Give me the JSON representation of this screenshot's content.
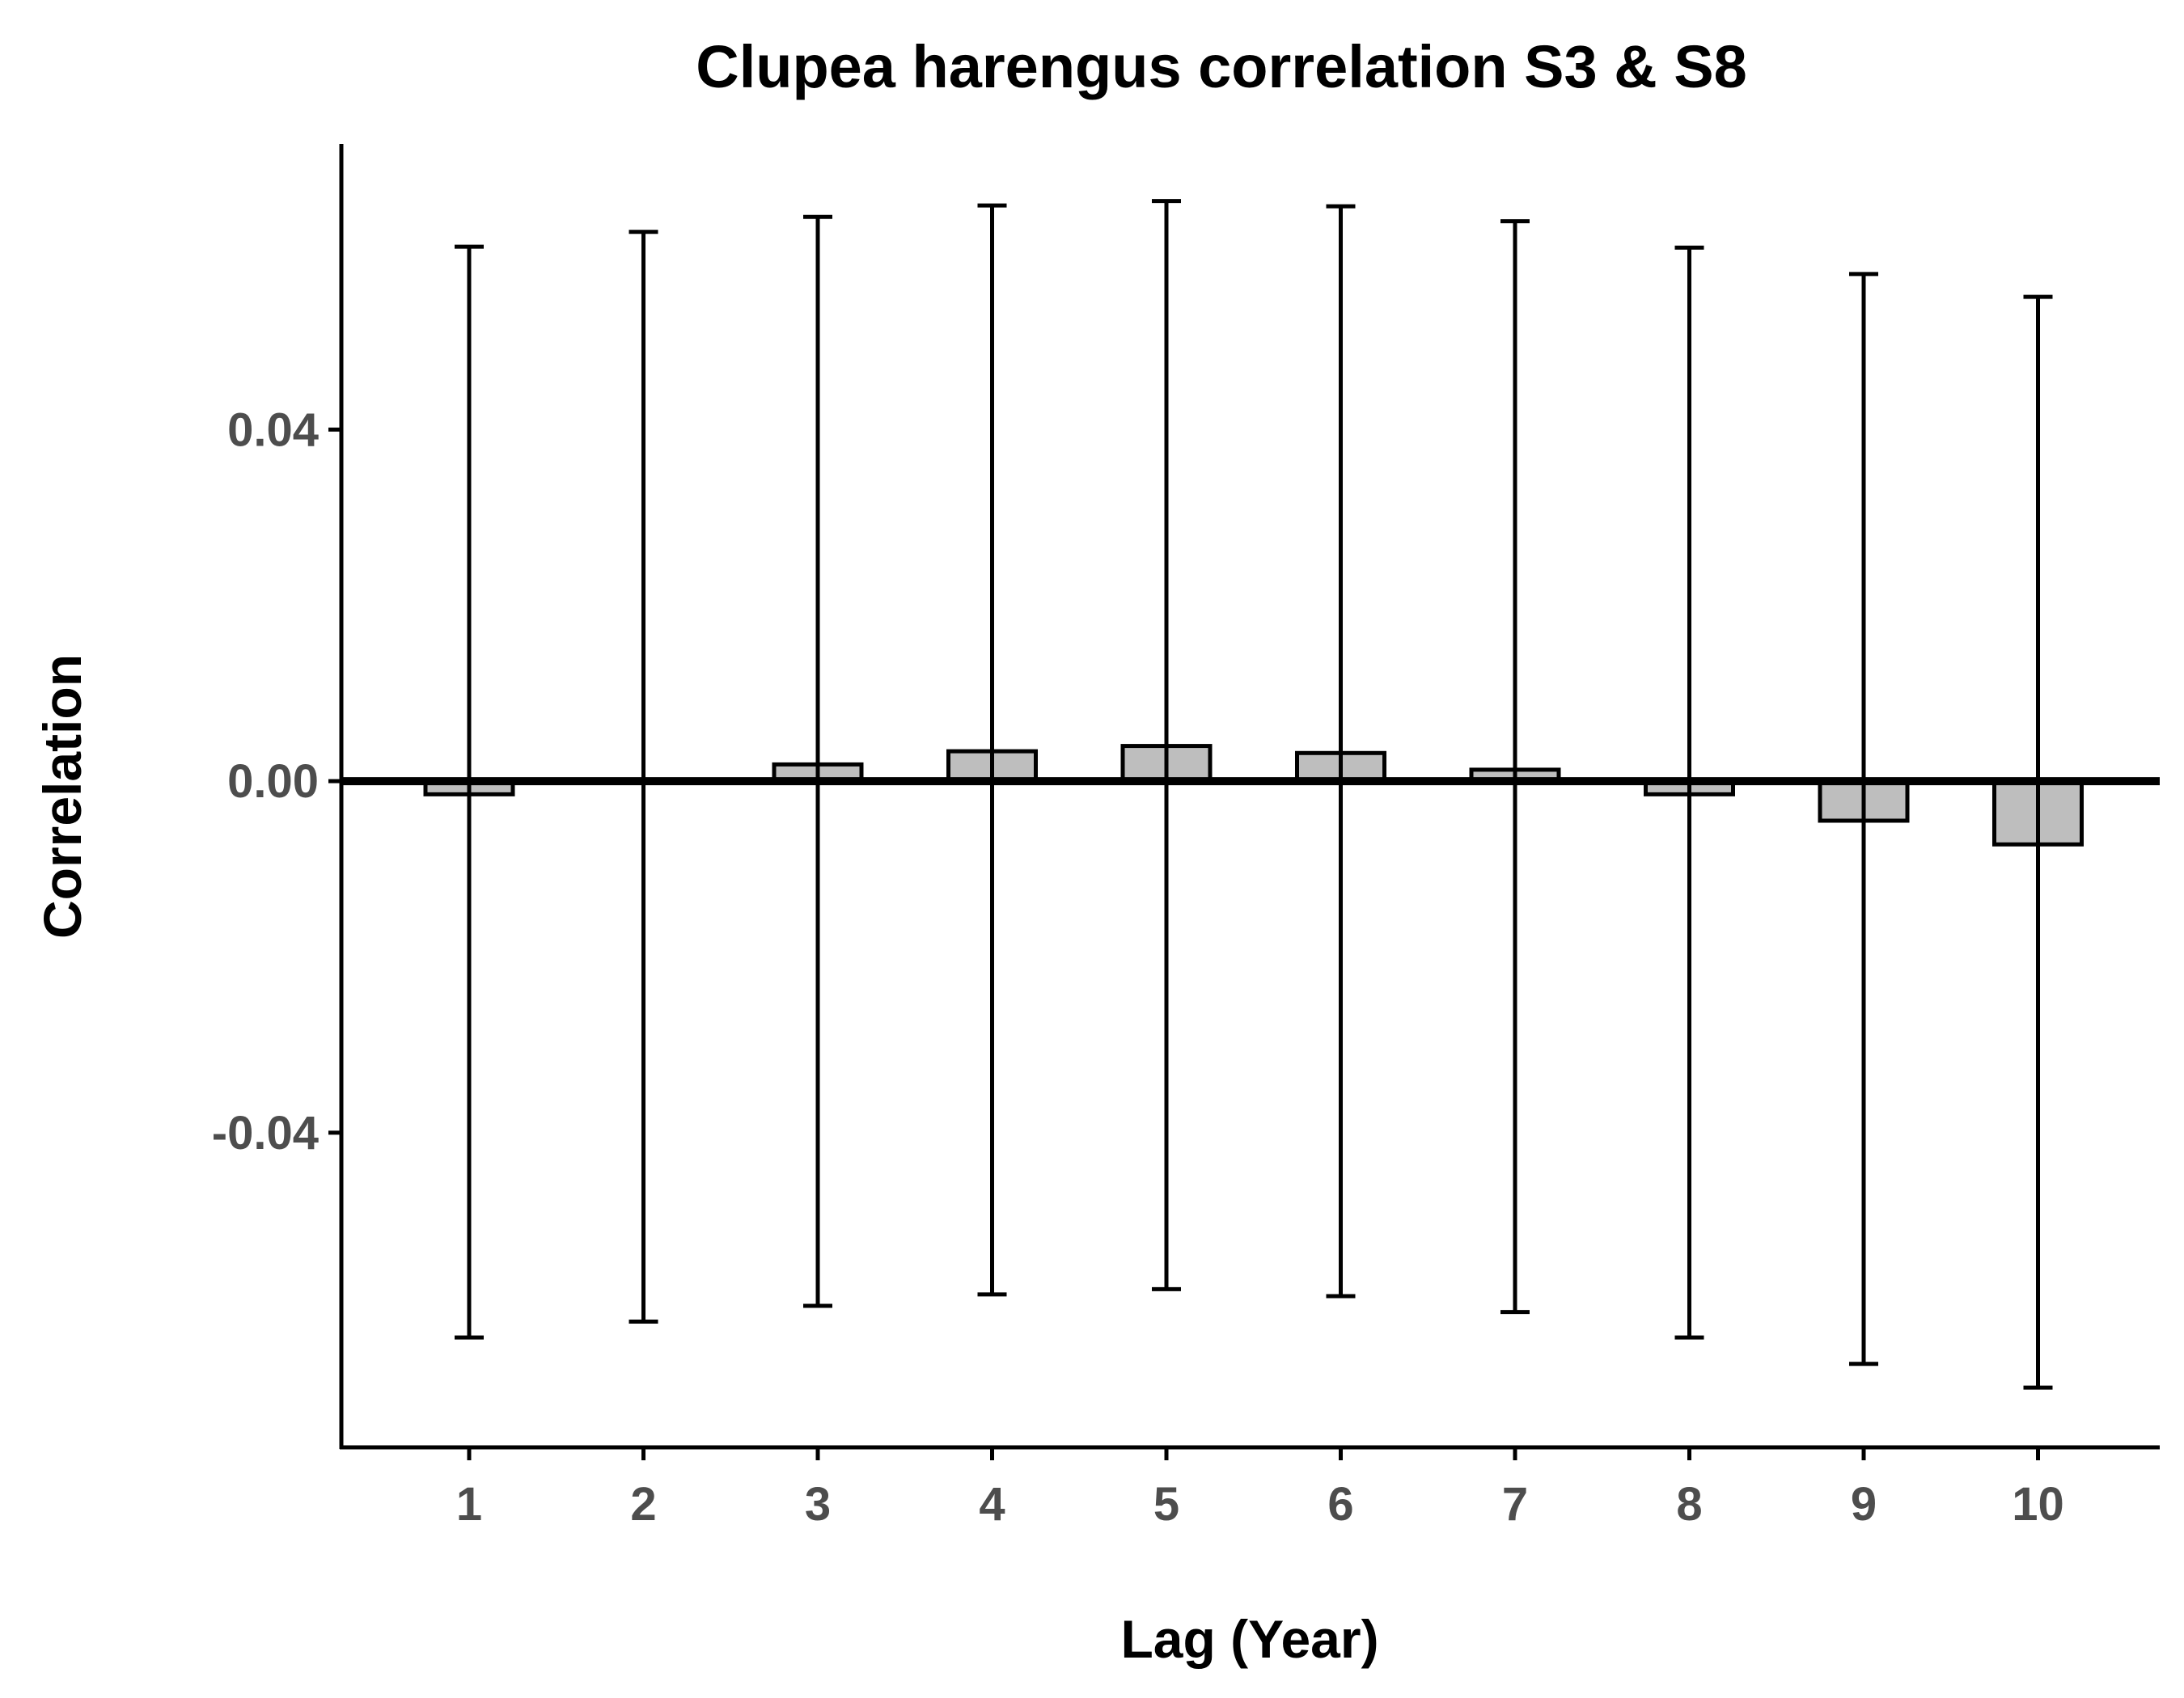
{
  "chart_data": {
    "type": "bar",
    "title": "Clupea harengus correlation S3 & S8",
    "xlabel": "Lag (Year)",
    "ylabel": "Correlation",
    "categories": [
      "1",
      "2",
      "3",
      "4",
      "5",
      "6",
      "7",
      "8",
      "9",
      "10"
    ],
    "values": [
      -0.0015,
      -0.0002,
      0.0019,
      0.0034,
      0.004,
      0.0032,
      0.0013,
      -0.0015,
      -0.0045,
      -0.0072
    ],
    "error_upper": [
      0.0608,
      0.0625,
      0.0642,
      0.0655,
      0.066,
      0.0654,
      0.0637,
      0.0607,
      0.0577,
      0.0551
    ],
    "error_lower": [
      -0.0633,
      -0.0615,
      -0.0597,
      -0.0584,
      -0.0578,
      -0.0586,
      -0.0604,
      -0.0633,
      -0.0663,
      -0.069
    ],
    "yticks": [
      "0.04",
      "0.00",
      "-0.04"
    ],
    "ytick_values": [
      0.04,
      0.0,
      -0.04
    ],
    "ylim": [
      -0.0758,
      0.0725
    ],
    "grid": false,
    "zero_line": true,
    "colors": {
      "bar_fill": "#bebebe",
      "bar_stroke": "#000000",
      "tick_text": "#4d4d4d"
    }
  }
}
